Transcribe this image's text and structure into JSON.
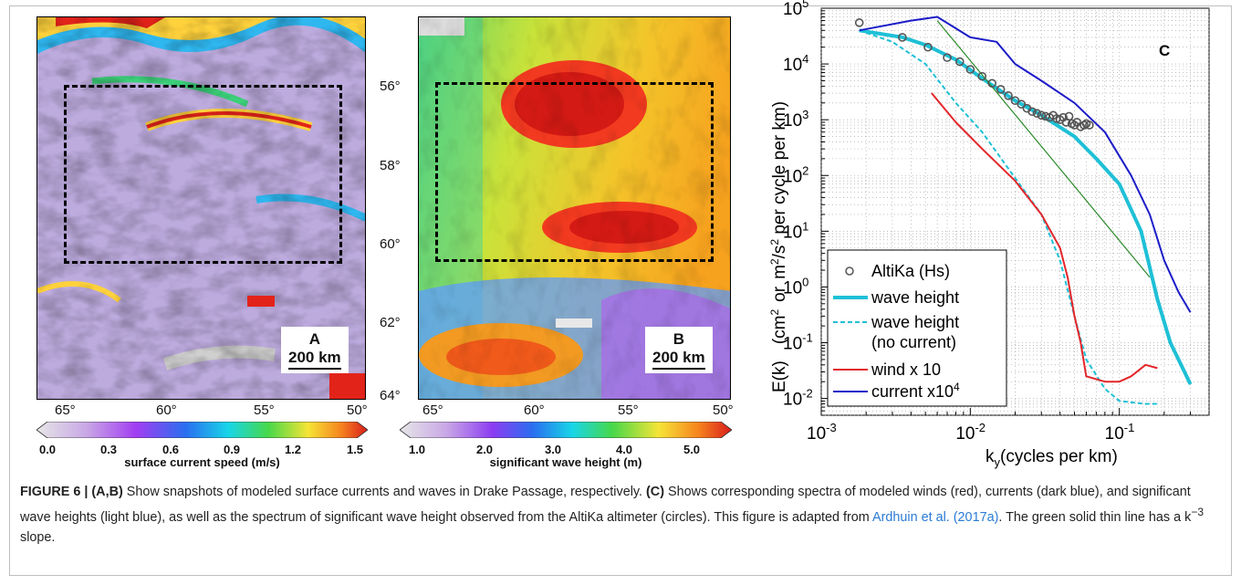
{
  "panel_a": {
    "letter": "A",
    "scale": "200 km",
    "x_ticks": [
      "65°",
      "60°",
      "55°",
      "50°"
    ],
    "colorbar": {
      "ticks": [
        "0.0",
        "0.3",
        "0.6",
        "0.9",
        "1.2",
        "1.5"
      ],
      "label": "surface current speed (m/s)"
    }
  },
  "panel_b": {
    "letter": "B",
    "scale": "200 km",
    "x_ticks": [
      "65°",
      "60°",
      "55°",
      "50°"
    ],
    "y_ticks": [
      "56°",
      "58°",
      "60°",
      "62°",
      "64°"
    ],
    "colorbar": {
      "ticks": [
        "1.0",
        "2.0",
        "3.0",
        "4.0",
        "5.0"
      ],
      "label": "significant wave height (m)"
    }
  },
  "chart_data": {
    "type": "line",
    "panel_letter": "C",
    "x_scale": "log",
    "y_scale": "log",
    "xlim": [
      0.001,
      0.4
    ],
    "ylim": [
      0.005,
      100000
    ],
    "x_ticks": [
      "10",
      "10",
      "10"
    ],
    "x_tick_exponents": [
      "-3",
      "-2",
      "-1"
    ],
    "y_ticks": [
      "10",
      "10",
      "10",
      "10",
      "10",
      "10",
      "10",
      "10"
    ],
    "y_tick_exponents": [
      "5",
      "4",
      "3",
      "2",
      "1",
      "0",
      "-1",
      "-2"
    ],
    "xlabel_parts": [
      "k",
      "y",
      "(cycles per km)"
    ],
    "ylabel": "E(k)   (cm² or m²/s² per cycle per km)",
    "grid": true,
    "legend_position": "lower-left",
    "legend": {
      "altika": "AltiKa (Hs)",
      "wave_height": "wave height",
      "wave_nc_1": "wave height",
      "wave_nc_2": "(no current)",
      "wind": "wind x 10",
      "current": "current x10",
      "current_exp": "4"
    },
    "colors": {
      "wave": "#1ec0d6",
      "wave_nc": "#1ec0d6",
      "wind": "#e3262a",
      "current": "#1c1cc8",
      "slope": "#2a8a2a",
      "altika": "#555555"
    },
    "series": [
      {
        "name": "wave height",
        "style": "thick",
        "x": [
          0.0018,
          0.0035,
          0.005,
          0.008,
          0.012,
          0.02,
          0.03,
          0.05,
          0.07,
          0.1,
          0.14,
          0.18,
          0.22,
          0.3
        ],
        "y": [
          40000,
          30000,
          22000,
          12000,
          5500,
          2200,
          1200,
          500,
          200,
          70,
          10,
          0.6,
          0.1,
          0.018
        ]
      },
      {
        "name": "wave height (no current)",
        "style": "dashed",
        "x": [
          0.0018,
          0.003,
          0.005,
          0.008,
          0.012,
          0.02,
          0.03,
          0.04,
          0.05,
          0.06,
          0.08,
          0.1,
          0.15,
          0.18
        ],
        "y": [
          40000,
          25000,
          10000,
          2000,
          600,
          90,
          20,
          3,
          0.3,
          0.05,
          0.015,
          0.009,
          0.008,
          0.008
        ]
      },
      {
        "name": "wind x 10",
        "style": "solid",
        "x": [
          0.0055,
          0.008,
          0.012,
          0.02,
          0.03,
          0.04,
          0.045,
          0.05,
          0.055,
          0.06,
          0.08,
          0.1,
          0.12,
          0.15,
          0.18
        ],
        "y": [
          3000,
          900,
          300,
          80,
          20,
          5,
          1.5,
          0.3,
          0.1,
          0.025,
          0.02,
          0.02,
          0.025,
          0.04,
          0.035
        ]
      },
      {
        "name": "current x10⁴",
        "style": "solid",
        "x": [
          0.0018,
          0.004,
          0.006,
          0.01,
          0.015,
          0.02,
          0.03,
          0.05,
          0.08,
          0.12,
          0.16,
          0.2,
          0.25,
          0.3
        ],
        "y": [
          40000,
          60000,
          70000,
          30000,
          25000,
          10000,
          5000,
          2000,
          600,
          100,
          20,
          3,
          0.8,
          0.35
        ]
      },
      {
        "name": "k^-3 slope",
        "style": "thin",
        "x": [
          0.006,
          0.16
        ],
        "y": [
          60000,
          1.5
        ]
      },
      {
        "name": "AltiKa (Hs)",
        "style": "circles",
        "x": [
          0.0018,
          0.0035,
          0.0052,
          0.007,
          0.0085,
          0.01,
          0.012,
          0.014,
          0.016,
          0.018,
          0.02,
          0.022,
          0.024,
          0.026,
          0.028,
          0.03,
          0.032,
          0.034,
          0.036,
          0.038,
          0.04,
          0.042,
          0.044,
          0.046,
          0.048,
          0.05,
          0.052,
          0.055,
          0.058,
          0.06,
          0.063
        ],
        "y": [
          55000,
          30000,
          20000,
          13000,
          11000,
          8000,
          6000,
          4500,
          3500,
          2700,
          2200,
          1900,
          1600,
          1400,
          1300,
          1200,
          1150,
          1100,
          1200,
          1050,
          1000,
          1100,
          900,
          1150,
          850,
          800,
          900,
          750,
          800,
          850,
          800
        ]
      }
    ]
  },
  "caption": {
    "label": "FIGURE 6 | (A,B)",
    "t1": " Show snapshots of modeled surface currents and waves in Drake Passage, respectively. ",
    "c_label": "(C)",
    "t2": " Shows corresponding spectra of modeled winds (red), currents (dark blue), and significant wave heights (light blue), as well as the spectrum of significant wave height observed from the AltiKa altimeter (circles). This figure is adapted from ",
    "link": "Ardhuin et al. (2017a)",
    "t3": ". The green solid thin line has a k",
    "sup": "−3",
    "t4": " slope."
  }
}
